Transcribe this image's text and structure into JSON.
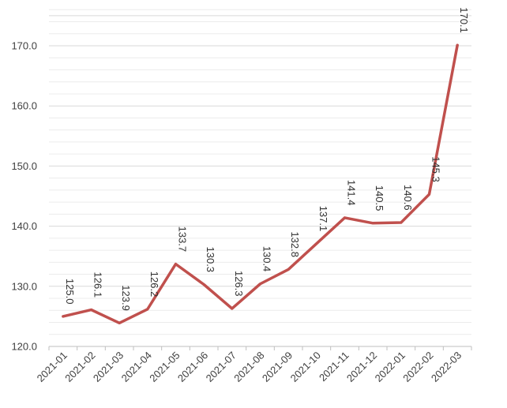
{
  "chart_data": {
    "type": "line",
    "title": "",
    "xlabel": "",
    "ylabel": "",
    "categories": [
      "2021-01",
      "2021-02",
      "2021-03",
      "2021-04",
      "2021-05",
      "2021-06",
      "2021-07",
      "2021-08",
      "2021-09",
      "2021-10",
      "2021-11",
      "2021-12",
      "2022-01",
      "2022-02",
      "2022-03"
    ],
    "series": [
      {
        "values": [
          125.0,
          126.1,
          123.9,
          126.2,
          133.7,
          130.3,
          126.3,
          130.4,
          132.8,
          137.1,
          141.4,
          140.5,
          140.6,
          145.3,
          170.1
        ],
        "labels": [
          "125.0",
          "126.1",
          "123.9",
          "126.2",
          "133.7",
          "130.3",
          "126.3",
          "130.4",
          "132.8",
          "137.1",
          "141.4",
          "140.5",
          "140.6",
          "145.3",
          "170.1"
        ],
        "color": "#c0504d"
      }
    ],
    "ylim": [
      120,
      170
    ],
    "yticks": [
      120,
      130,
      140,
      150,
      160,
      170
    ],
    "ytick_labels": [
      "120.0",
      "130.0",
      "140.0",
      "150.0",
      "160.0",
      "170.0"
    ],
    "grid": true,
    "legend": "none"
  }
}
